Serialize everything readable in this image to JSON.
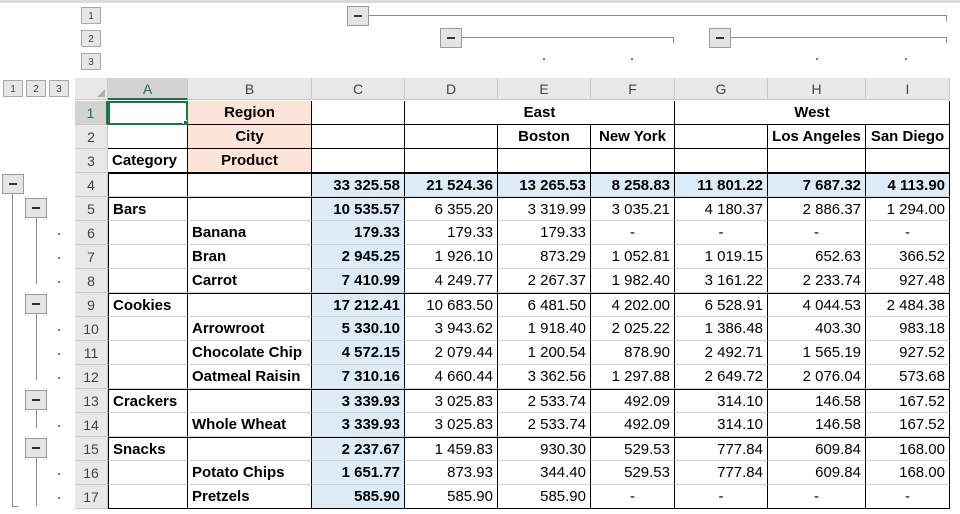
{
  "outline": {
    "column_levels": [
      "1",
      "2",
      "3"
    ],
    "row_levels": [
      "1",
      "2",
      "3"
    ]
  },
  "columns": [
    "A",
    "B",
    "C",
    "D",
    "E",
    "F",
    "G",
    "H",
    "I"
  ],
  "selected_column": "A",
  "rows": [
    {
      "n": "1",
      "cells": [
        "",
        "Region",
        "",
        "",
        "East",
        "",
        "",
        "West",
        ""
      ]
    },
    {
      "n": "2",
      "cells": [
        "",
        "City",
        "",
        "",
        "Boston",
        "New York",
        "",
        "Los Angeles",
        "San Diego"
      ]
    },
    {
      "n": "3",
      "cells": [
        "Category",
        "Product",
        "",
        "",
        "",
        "",
        "",
        "",
        ""
      ]
    },
    {
      "n": "4",
      "cells": [
        "",
        "",
        "33 325.58",
        "21 524.36",
        "13 265.53",
        "8 258.83",
        "11 801.22",
        "7 687.32",
        "4 113.90"
      ]
    },
    {
      "n": "5",
      "cells": [
        "Bars",
        "",
        "10 535.57",
        "6 355.20",
        "3 319.99",
        "3 035.21",
        "4 180.37",
        "2 886.37",
        "1 294.00"
      ]
    },
    {
      "n": "6",
      "cells": [
        "",
        "Banana",
        "179.33",
        "179.33",
        "179.33",
        "-",
        "-",
        "-",
        "-"
      ]
    },
    {
      "n": "7",
      "cells": [
        "",
        "Bran",
        "2 945.25",
        "1 926.10",
        "873.29",
        "1 052.81",
        "1 019.15",
        "652.63",
        "366.52"
      ]
    },
    {
      "n": "8",
      "cells": [
        "",
        "Carrot",
        "7 410.99",
        "4 249.77",
        "2 267.37",
        "1 982.40",
        "3 161.22",
        "2 233.74",
        "927.48"
      ]
    },
    {
      "n": "9",
      "cells": [
        "Cookies",
        "",
        "17 212.41",
        "10 683.50",
        "6 481.50",
        "4 202.00",
        "6 528.91",
        "4 044.53",
        "2 484.38"
      ]
    },
    {
      "n": "10",
      "cells": [
        "",
        "Arrowroot",
        "5 330.10",
        "3 943.62",
        "1 918.40",
        "2 025.22",
        "1 386.48",
        "403.30",
        "983.18"
      ]
    },
    {
      "n": "11",
      "cells": [
        "",
        "Chocolate Chip",
        "4 572.15",
        "2 079.44",
        "1 200.54",
        "878.90",
        "2 492.71",
        "1 565.19",
        "927.52"
      ]
    },
    {
      "n": "12",
      "cells": [
        "",
        "Oatmeal Raisin",
        "7 310.16",
        "4 660.44",
        "3 362.56",
        "1 297.88",
        "2 649.72",
        "2 076.04",
        "573.68"
      ]
    },
    {
      "n": "13",
      "cells": [
        "Crackers",
        "",
        "3 339.93",
        "3 025.83",
        "2 533.74",
        "492.09",
        "314.10",
        "146.58",
        "167.52"
      ]
    },
    {
      "n": "14",
      "cells": [
        "",
        "Whole Wheat",
        "3 339.93",
        "3 025.83",
        "2 533.74",
        "492.09",
        "314.10",
        "146.58",
        "167.52"
      ]
    },
    {
      "n": "15",
      "cells": [
        "Snacks",
        "",
        "2 237.67",
        "1 459.83",
        "930.30",
        "529.53",
        "777.84",
        "609.84",
        "168.00"
      ]
    },
    {
      "n": "16",
      "cells": [
        "",
        "Potato Chips",
        "1 651.77",
        "873.93",
        "344.40",
        "529.53",
        "777.84",
        "609.84",
        "168.00"
      ]
    },
    {
      "n": "17",
      "cells": [
        "",
        "Pretzels",
        "585.90",
        "585.90",
        "585.90",
        "-",
        "-",
        "-",
        "-"
      ]
    }
  ]
}
